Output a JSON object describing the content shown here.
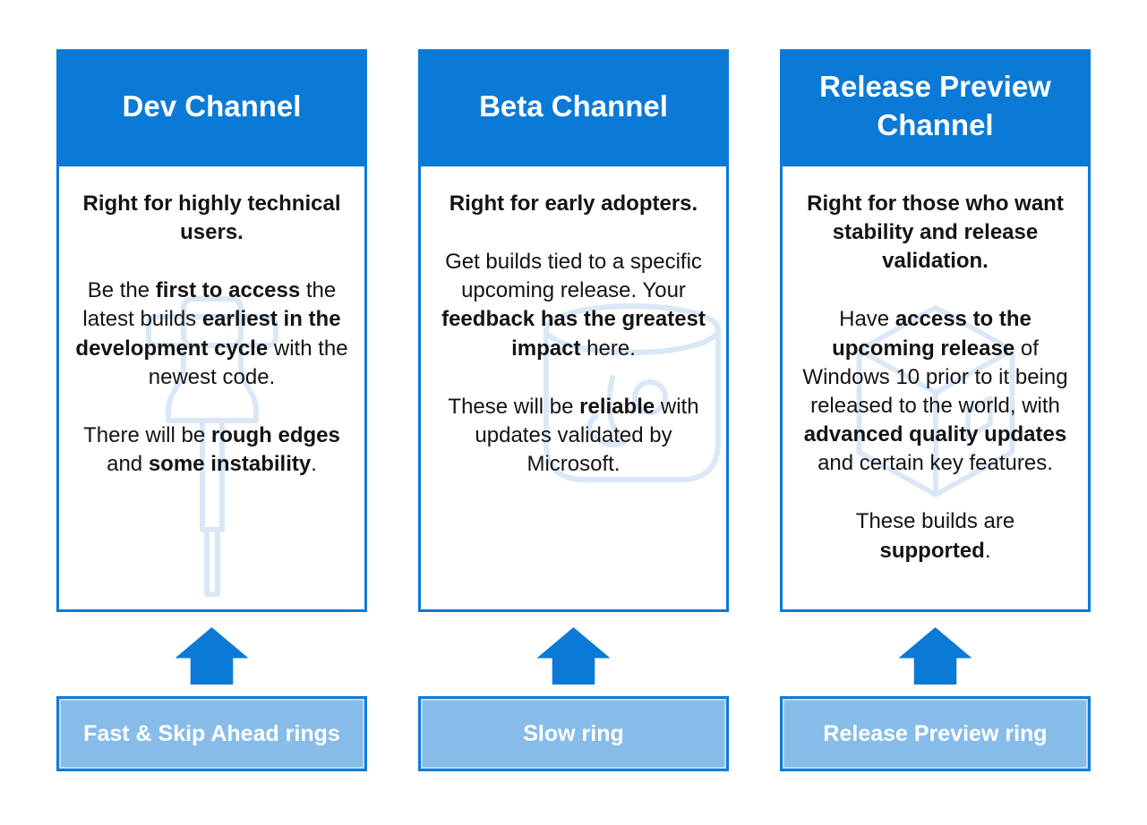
{
  "theme": {
    "primary_blue": "#0b7ad6",
    "ring_fill": "#87bce9",
    "ring_border": "#0f7cd7",
    "watermark_stroke": "#d9e7f6",
    "header_text": "#ffffff",
    "body_text": "#141414"
  },
  "columns": [
    {
      "id": "dev",
      "header_label": "Dev Channel",
      "watermark_icon": "hammer-icon",
      "paragraphs": [
        [
          {
            "text": "Right for highly technical users.",
            "bold": true
          }
        ],
        [
          {
            "text": "Be the ",
            "bold": false
          },
          {
            "text": "first to access",
            "bold": true
          },
          {
            "text": " the latest builds ",
            "bold": false
          },
          {
            "text": "earliest in the development cycle",
            "bold": true
          },
          {
            "text": " with the newest code.",
            "bold": false
          }
        ],
        [
          {
            "text": "There will be ",
            "bold": false
          },
          {
            "text": "rough edges",
            "bold": true
          },
          {
            "text": " and ",
            "bold": false
          },
          {
            "text": "some instability",
            "bold": true
          },
          {
            "text": ".",
            "bold": false
          }
        ]
      ],
      "arrow_icon": "up-arrow-icon",
      "ring_label": "Fast & Skip Ahead rings"
    },
    {
      "id": "beta",
      "header_label": "Beta Channel",
      "watermark_icon": "beaker-icon",
      "paragraphs": [
        [
          {
            "text": "Right for early adopters.",
            "bold": true
          }
        ],
        [
          {
            "text": "Get builds tied to a specific upcoming release. Your ",
            "bold": false
          },
          {
            "text": "feedback has the greatest impact",
            "bold": true
          },
          {
            "text": " here.",
            "bold": false
          }
        ],
        [
          {
            "text": "These will be ",
            "bold": false
          },
          {
            "text": "reliable",
            "bold": true
          },
          {
            "text": " with updates validated by Microsoft.",
            "bold": false
          }
        ]
      ],
      "arrow_icon": "up-arrow-icon",
      "ring_label": "Slow ring"
    },
    {
      "id": "release-preview",
      "header_label": "Release Preview Channel",
      "watermark_icon": "cube-icon",
      "paragraphs": [
        [
          {
            "text": "Right for those who want stability and release validation.",
            "bold": true
          }
        ],
        [
          {
            "text": "Have ",
            "bold": false
          },
          {
            "text": "access to the upcoming release",
            "bold": true
          },
          {
            "text": " of Windows 10 prior to it being released to the world, with ",
            "bold": false
          },
          {
            "text": "advanced quality updates",
            "bold": true
          },
          {
            "text": " and certain key features.",
            "bold": false
          }
        ],
        [
          {
            "text": "These builds are ",
            "bold": false
          },
          {
            "text": "supported",
            "bold": true
          },
          {
            "text": ".",
            "bold": false
          }
        ]
      ],
      "arrow_icon": "up-arrow-icon",
      "ring_label": "Release Preview ring"
    }
  ]
}
